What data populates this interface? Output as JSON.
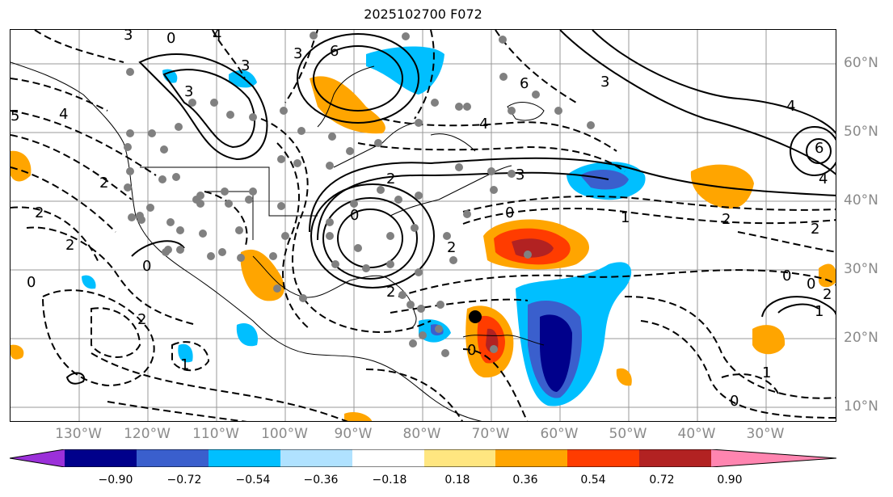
{
  "title": "2025102700 F072",
  "longitude_labels": [
    "130°W",
    "120°W",
    "110°W",
    "100°W",
    "90°W",
    "80°W",
    "70°W",
    "60°W",
    "50°W",
    "40°W",
    "30°W"
  ],
  "latitude_labels": [
    "60°N",
    "50°N",
    "40°N",
    "30°N",
    "20°N",
    "10°N"
  ],
  "colorbar": {
    "ticks": [
      "−0.90",
      "−0.72",
      "−0.54",
      "−0.36",
      "−0.18",
      "0.18",
      "0.36",
      "0.54",
      "0.72",
      "0.90"
    ],
    "colors": [
      "#9b30d9",
      "#00008b",
      "#3a5fcd",
      "#00bfff",
      "#b0e2ff",
      "#ffffff",
      "#ffe680",
      "#ffa500",
      "#ff3c00",
      "#b22222",
      "#ff85b0"
    ]
  },
  "chart_data": {
    "type": "map",
    "title": "2025102700 F072",
    "lon_range_deg": [
      -140,
      -20
    ],
    "lat_range_deg": [
      7,
      65
    ],
    "colorbar_levels": [
      -0.9,
      -0.72,
      -0.54,
      -0.36,
      -0.18,
      0.18,
      0.36,
      0.54,
      0.72,
      0.9
    ],
    "colorbar_extend": "both",
    "contour_labels_visible": [
      "0",
      "1",
      "2",
      "3",
      "4",
      "6",
      "-1",
      "-2",
      "-3",
      "-4",
      "-6"
    ],
    "marker": {
      "lon": -71,
      "lat": 23.5,
      "description": "black dot"
    }
  }
}
